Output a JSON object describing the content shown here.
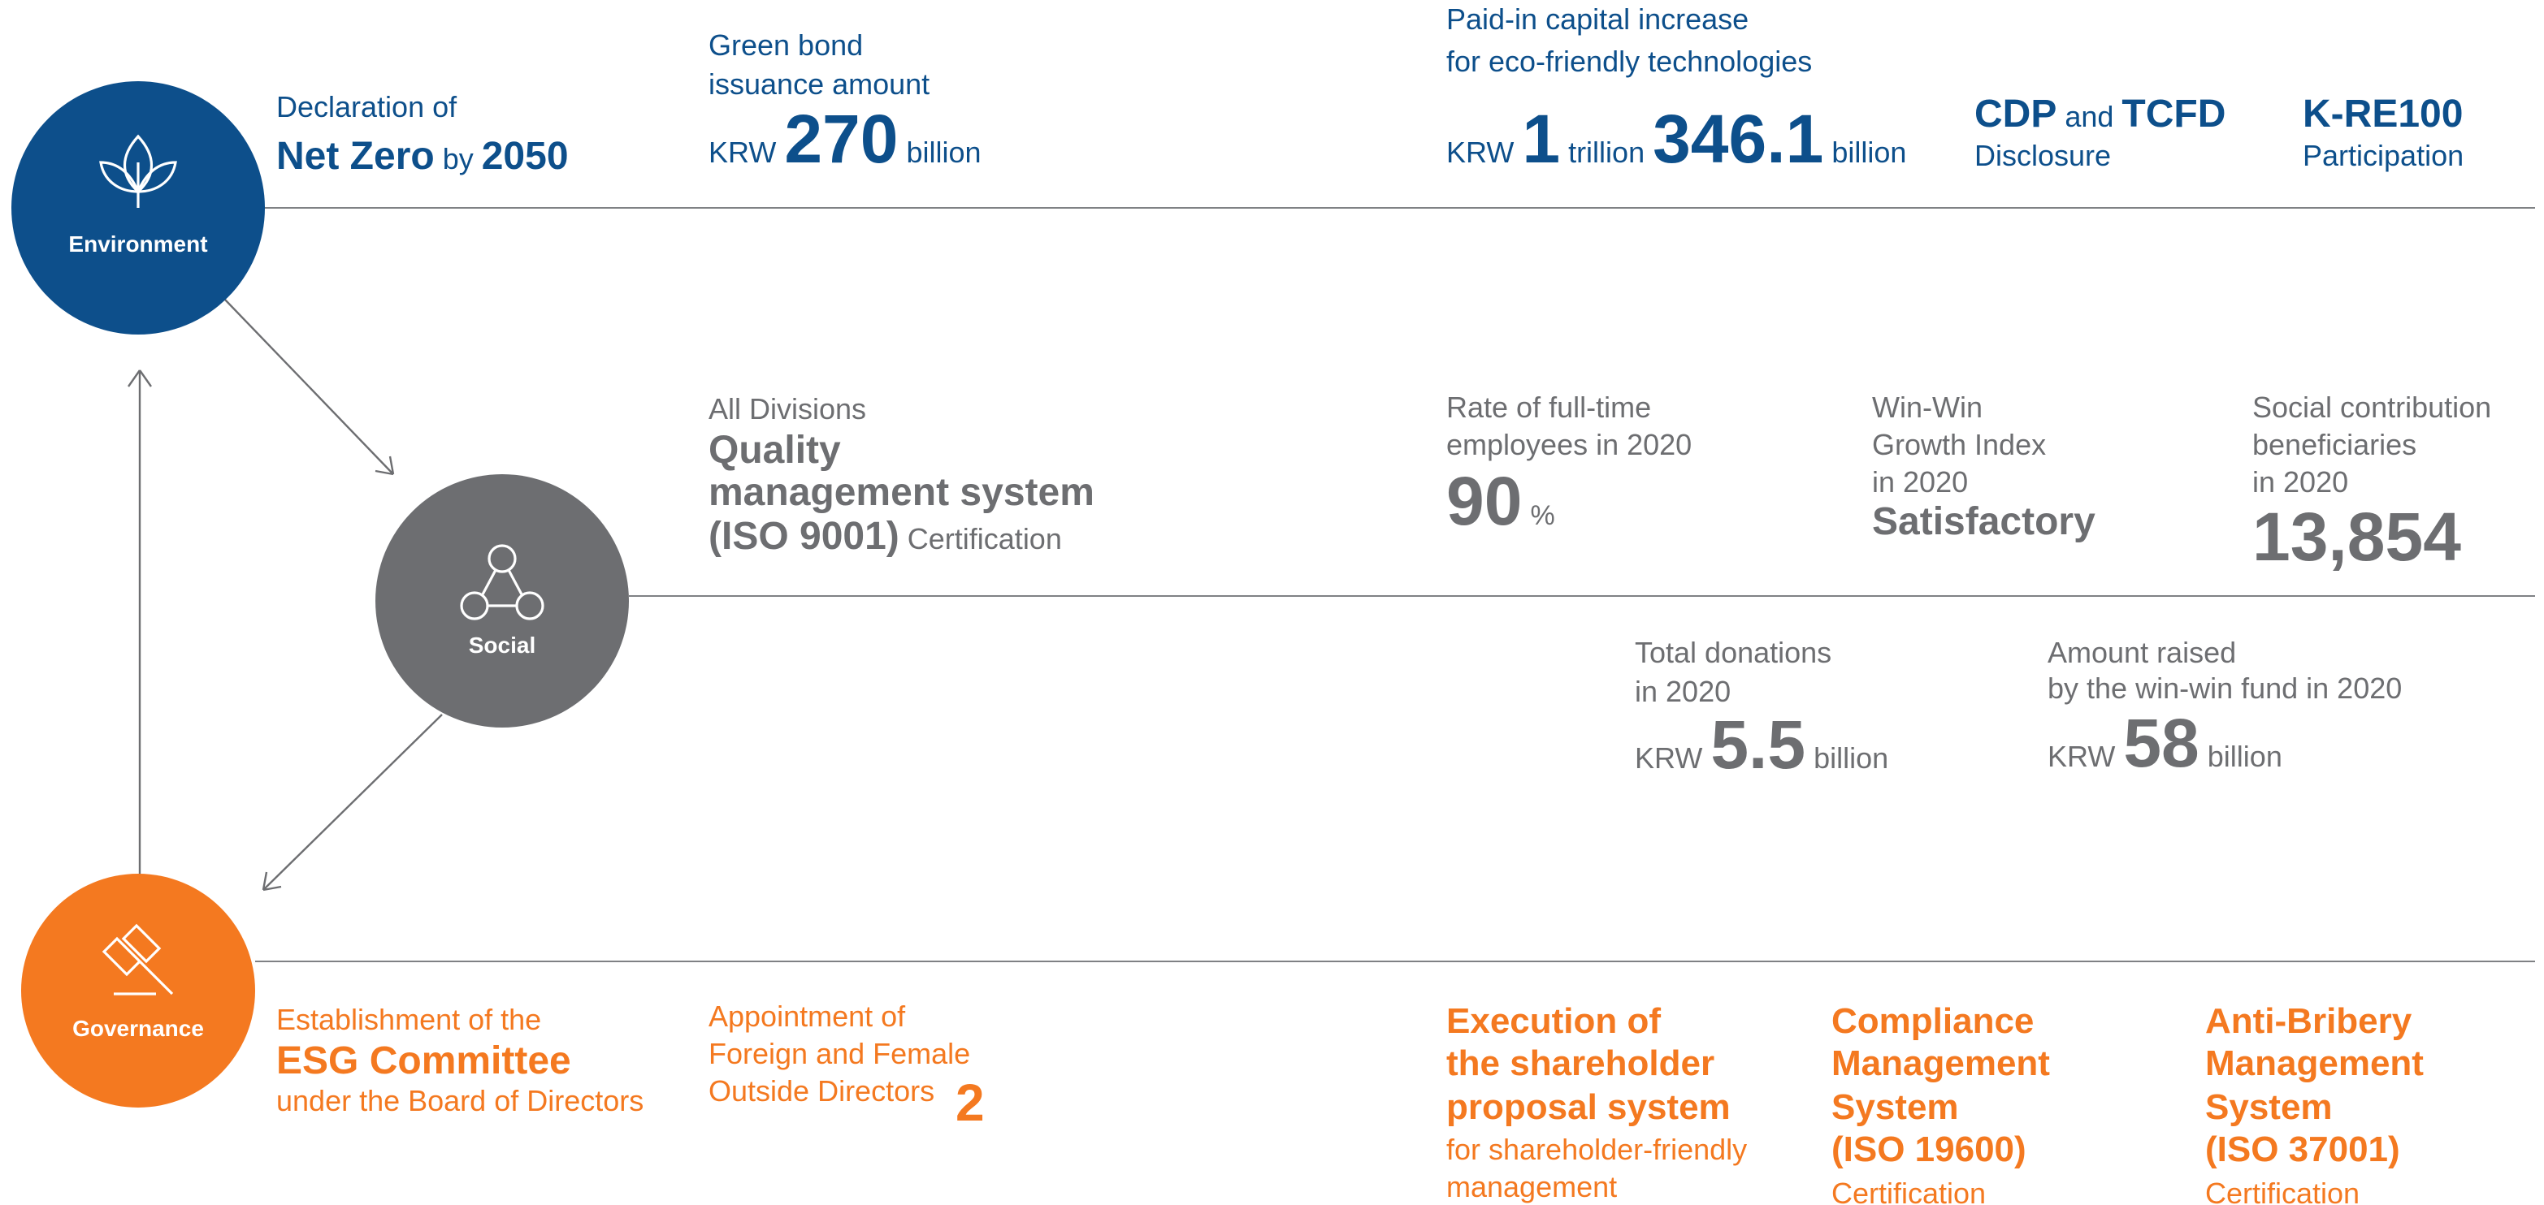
{
  "environment": {
    "label": "Environment",
    "items": [
      [
        "Declaration of",
        "Net Zero",
        "by",
        "2050"
      ],
      [
        "Green bond",
        "issuance amount",
        "KRW",
        "270",
        "billion"
      ],
      [
        "Paid-in capital increase",
        "for eco-friendly technologies",
        "KRW",
        "1",
        "trillion",
        "346.1",
        "billion"
      ],
      [
        "CDP",
        "and",
        "TCFD",
        "Disclosure"
      ],
      [
        "K-RE100",
        "Participation"
      ]
    ]
  },
  "social": {
    "label": "Social",
    "items": [
      [
        "All Divisions",
        "Quality",
        "management system",
        "(ISO 9001)",
        "Certification"
      ],
      [
        "Rate of full-time",
        "employees in 2020",
        "90",
        "%"
      ],
      [
        "Win-Win",
        "Growth Index",
        "in 2020",
        "Satisfactory"
      ],
      [
        "Social contribution",
        "beneficiaries",
        "in 2020",
        "13,854"
      ],
      [
        "Total donations",
        "in 2020",
        "KRW",
        "5.5",
        "billion"
      ],
      [
        "Amount raised",
        "by the win-win fund in 2020",
        "KRW",
        "58",
        "billion"
      ]
    ]
  },
  "governance": {
    "label": "Governance",
    "items": [
      [
        "Establishment of the",
        "ESG Committee",
        "under the Board of Directors"
      ],
      [
        "Appointment of",
        "Foreign and Female",
        "Outside Directors",
        "2"
      ],
      [
        "Execution of",
        "the shareholder",
        "proposal system",
        "for shareholder-friendly",
        "management"
      ],
      [
        "Compliance",
        "Management",
        "System",
        "(ISO 19600)",
        "Certification"
      ],
      [
        "Anti-Bribery",
        "Management",
        "System",
        "(ISO 37001)",
        "Certification"
      ]
    ]
  }
}
